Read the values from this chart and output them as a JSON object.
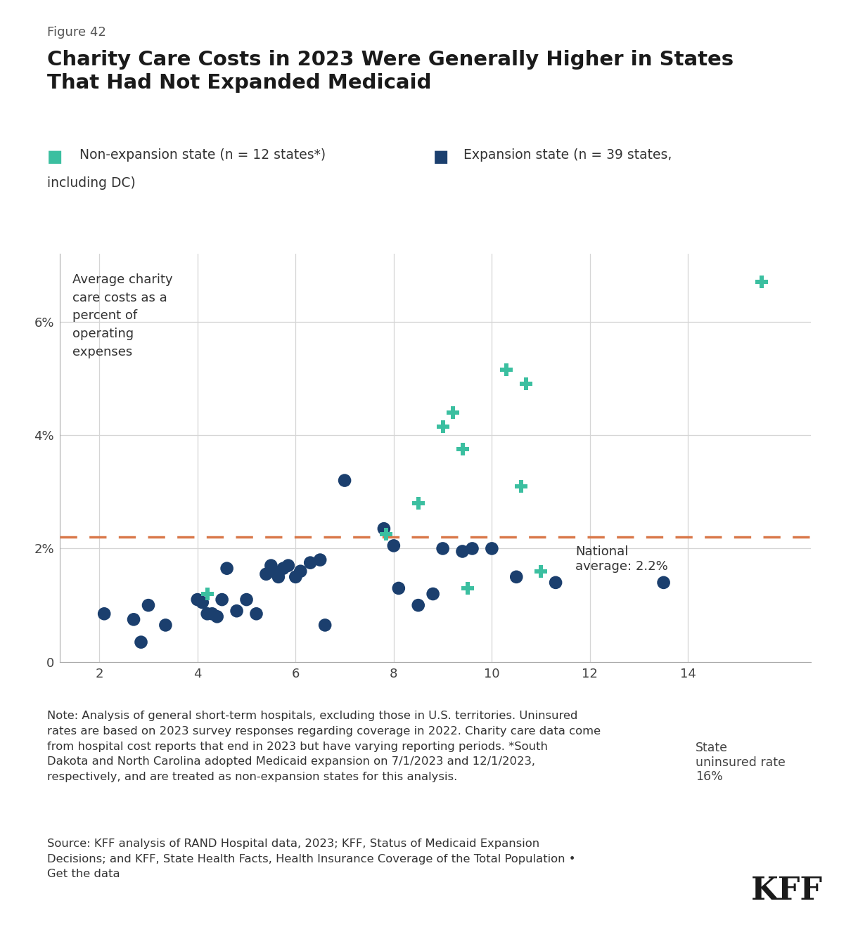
{
  "title_figure": "Figure 42",
  "title_line1": "Charity Care Costs in 2023 Were Generally Higher in States",
  "title_line2": "That Had Not Expanded Medicaid",
  "legend_nonexp": "Non-expansion state (n = 12 states*)",
  "legend_exp_line1": "Expansion state (n = 39 states,",
  "legend_exp_line2": "including DC)",
  "ylabel_text": "Average charity\ncare costs as a\npercent of\noperating\nexpenses",
  "national_avg": 2.2,
  "national_avg_label": "National\naverage: 2.2%",
  "expansion_color": "#1b3f6e",
  "nonexp_color": "#3bbfa0",
  "dashed_line_color": "#d9784a",
  "background_color": "#ffffff",
  "xlim": [
    1.2,
    16.5
  ],
  "ylim": [
    0,
    7.2
  ],
  "xticks": [
    2,
    4,
    6,
    8,
    10,
    12,
    14
  ],
  "yticks": [
    0,
    2,
    4,
    6
  ],
  "ytick_labels": [
    "0",
    "2%",
    "4%",
    "6%"
  ],
  "expansion_x": [
    2.1,
    2.7,
    2.85,
    3.0,
    3.35,
    4.0,
    4.1,
    4.2,
    4.3,
    4.4,
    4.5,
    4.6,
    4.8,
    5.0,
    5.2,
    5.4,
    5.5,
    5.55,
    5.65,
    5.75,
    5.85,
    6.0,
    6.1,
    6.3,
    6.5,
    6.6,
    7.0,
    7.8,
    8.0,
    8.1,
    8.5,
    8.8,
    9.0,
    9.4,
    9.6,
    10.0,
    10.5,
    11.3,
    13.5
  ],
  "expansion_y": [
    0.85,
    0.75,
    0.35,
    1.0,
    0.65,
    1.1,
    1.05,
    0.85,
    0.85,
    0.8,
    1.1,
    1.65,
    0.9,
    1.1,
    0.85,
    1.55,
    1.7,
    1.6,
    1.5,
    1.65,
    1.7,
    1.5,
    1.6,
    1.75,
    1.8,
    0.65,
    3.2,
    2.35,
    2.05,
    1.3,
    1.0,
    1.2,
    2.0,
    1.95,
    2.0,
    2.0,
    1.5,
    1.4,
    1.4
  ],
  "nonexp_x": [
    4.2,
    7.85,
    8.5,
    9.0,
    9.2,
    9.4,
    9.5,
    10.3,
    10.6,
    10.7,
    11.0,
    15.5
  ],
  "nonexp_y": [
    1.2,
    2.25,
    2.8,
    4.15,
    4.4,
    3.75,
    1.3,
    5.15,
    3.1,
    4.9,
    1.6,
    6.7
  ],
  "note_text": "Note: Analysis of general short-term hospitals, excluding those in U.S. territories. Uninsured\nrates are based on 2023 survey responses regarding coverage in 2022. Charity care data come\nfrom hospital cost reports that end in 2023 but have varying reporting periods. *South\nDakota and North Carolina adopted Medicaid expansion on 7/1/2023 and 12/1/2023,\nrespectively, and are treated as non-expansion states for this analysis.",
  "source_text": "Source: KFF analysis of RAND Hospital data, 2023; KFF, Status of Medicaid Expansion\nDecisions; and KFF, State Health Facts, Health Insurance Coverage of the Total Population •\nGet the data"
}
